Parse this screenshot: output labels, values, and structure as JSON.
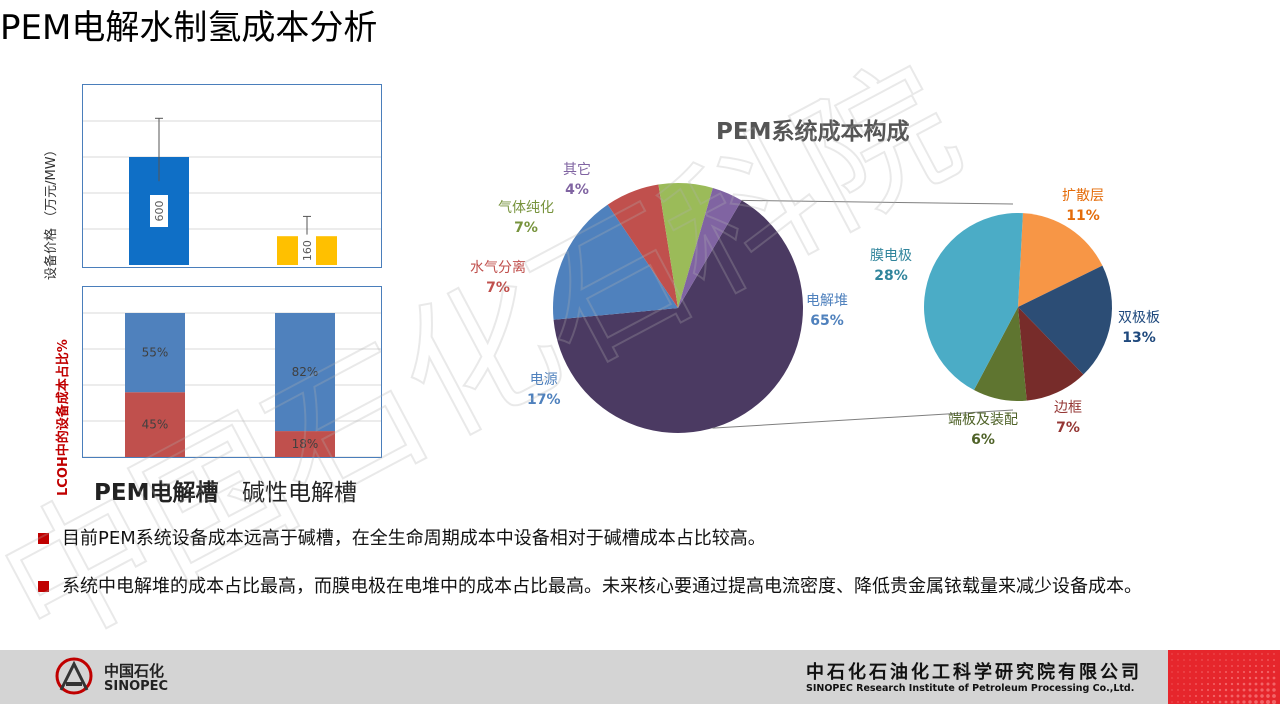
{
  "title": "PEM电解水制氢成本分析",
  "top_chart": {
    "ylabel": "设备价格 （万元/MW）",
    "bars": [
      {
        "category": "PEM电解槽",
        "value": 600,
        "color": "#0f6fc6",
        "err_low": 465,
        "err_high": 815
      },
      {
        "category": "碱性电解槽",
        "value": 160,
        "color": "#ffc000",
        "err_low": 70,
        "err_high": 270
      }
    ],
    "ylim": [
      0,
      1000
    ]
  },
  "bottom_chart": {
    "ylabel": "LCOH中的设备成本占比%",
    "stacks": [
      {
        "category": "PEM电解槽",
        "lower": 45,
        "upper": 55
      },
      {
        "category": "碱性电解槽",
        "lower": 18,
        "upper": 82
      }
    ],
    "lower_color": "#c0504d",
    "upper_color": "#4f81bd"
  },
  "categories": [
    "PEM电解槽",
    "碱性电解槽"
  ],
  "pie_main": {
    "title": "PEM系统成本构成",
    "slices": [
      {
        "name": "电解堆",
        "pct": "65%",
        "value": 65,
        "color": "#4b3a62"
      },
      {
        "name": "电源",
        "pct": "17%",
        "value": 17,
        "color": "#4f81bd"
      },
      {
        "name": "水气分离",
        "pct": "7%",
        "value": 7,
        "color": "#c0504d"
      },
      {
        "name": "气体纯化",
        "pct": "7%",
        "value": 7,
        "color": "#9bbb59"
      },
      {
        "name": "其它",
        "pct": "4%",
        "value": 4,
        "color": "#8064a2"
      }
    ]
  },
  "pie_sub": {
    "slices": [
      {
        "name": "扩散层",
        "pct": "11%",
        "value": 11,
        "color": "#f79646"
      },
      {
        "name": "双极板",
        "pct": "13%",
        "value": 13,
        "color": "#2c4d75"
      },
      {
        "name": "边框",
        "pct": "7%",
        "value": 7,
        "color": "#772c2a"
      },
      {
        "name": "端板及装配",
        "pct": "6%",
        "value": 6,
        "color": "#5f7530"
      },
      {
        "name": "膜电极",
        "pct": "28%",
        "value": 28,
        "color": "#4bacc6"
      }
    ]
  },
  "chart_data": [
    {
      "type": "bar",
      "categories": [
        "PEM电解槽",
        "碱性电解槽"
      ],
      "values": [
        600,
        160
      ],
      "ylabel": "设备价格 （万元/MW）"
    },
    {
      "type": "bar",
      "categories": [
        "PEM电解槽",
        "碱性电解槽"
      ],
      "series": [
        {
          "values": [
            45,
            18
          ]
        },
        {
          "values": [
            55,
            82
          ]
        }
      ],
      "ylabel": "LCOH中的设备成本占比%"
    },
    {
      "type": "pie",
      "title": "PEM系统成本构成",
      "categories": [
        "电解堆",
        "电源",
        "水气分离",
        "气体纯化",
        "其它"
      ],
      "values": [
        65,
        17,
        7,
        7,
        4
      ]
    },
    {
      "type": "pie",
      "categories": [
        "膜电极",
        "扩散层",
        "双极板",
        "边框",
        "端板及装配"
      ],
      "values": [
        28,
        11,
        13,
        7,
        6
      ]
    }
  ],
  "bullets": [
    "目前PEM系统设备成本远高于碱槽，在全生命周期成本中设备相对于碱槽成本占比较高。",
    "系统中电解堆的成本占比最高，而膜电极在电堆中的成本占比最高。未来核心要通过提高电流密度、降低贵金属铱载量来减少设备成本。"
  ],
  "footer": {
    "logo_cn": "中国石化",
    "logo_en": "SINOPEC",
    "org_cn": "中石化石油化工科学研究院有限公司",
    "org_en": "SINOPEC Research Institute of Petroleum Processing Co.,Ltd."
  },
  "watermark": "中国石化石科院"
}
